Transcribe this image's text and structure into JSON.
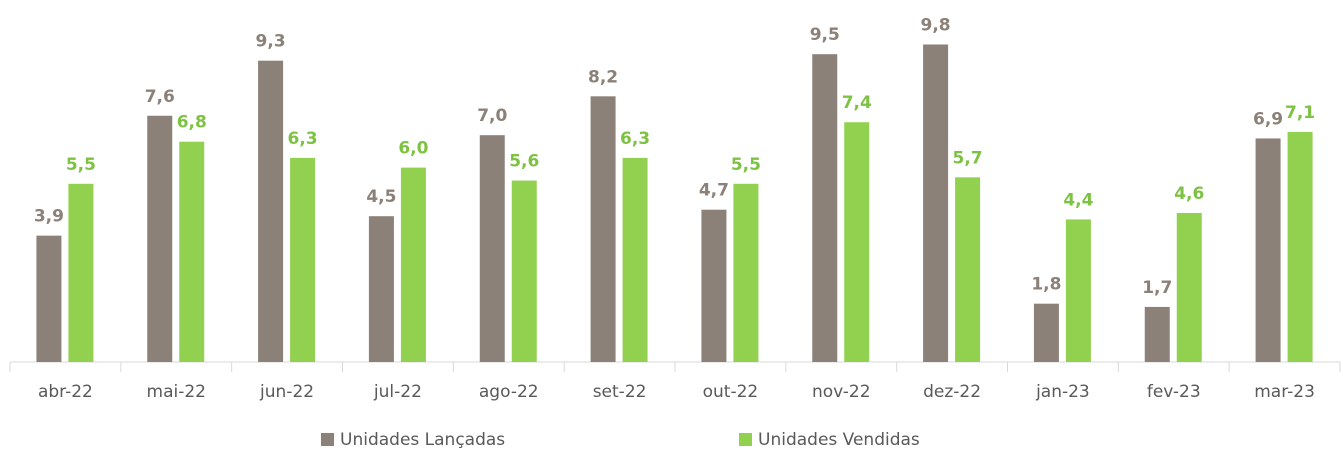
{
  "chart_data": {
    "type": "bar",
    "categories": [
      "abr-22",
      "mai-22",
      "jun-22",
      "jul-22",
      "ago-22",
      "set-22",
      "out-22",
      "nov-22",
      "dez-22",
      "jan-23",
      "fev-23",
      "mar-23"
    ],
    "series": [
      {
        "name": "Unidades Lançadas",
        "color": "#8b8178",
        "values": [
          3.9,
          7.6,
          9.3,
          4.5,
          7.0,
          8.2,
          4.7,
          9.5,
          9.8,
          1.8,
          1.7,
          6.9
        ],
        "value_labels": [
          "3,9",
          "7,6",
          "9,3",
          "4,5",
          "7,0",
          "8,2",
          "4,7",
          "9,5",
          "9,8",
          "1,8",
          "1,7",
          "6,9"
        ]
      },
      {
        "name": "Unidades Vendidas",
        "color": "#92d050",
        "values": [
          5.5,
          6.8,
          6.3,
          6.0,
          5.6,
          6.3,
          5.5,
          7.4,
          5.7,
          4.4,
          4.6,
          7.1
        ],
        "value_labels": [
          "5,5",
          "6,8",
          "6,3",
          "6,0",
          "5,6",
          "6,3",
          "5,5",
          "7,4",
          "5,7",
          "4,4",
          "4,6",
          "7,1"
        ]
      }
    ],
    "legend": "bottom"
  }
}
